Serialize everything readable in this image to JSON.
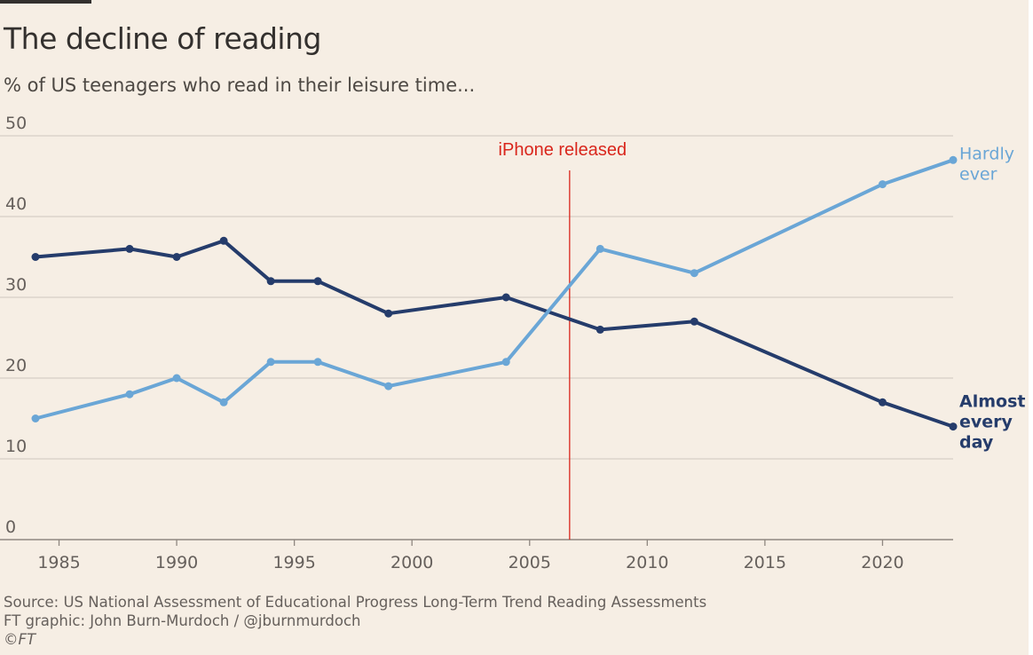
{
  "title": "The decline of reading",
  "subtitle": "% of US teenagers who read in their leisure time...",
  "source": {
    "line1": "Source: US National Assessment of Educational Progress Long-Term Trend Reading Assessments",
    "line2": "FT graphic: John Burn-Murdoch / @jburnmurdoch",
    "line3": "©FT"
  },
  "colors": {
    "background": "#f6eee4",
    "almost_every_day": "#253c6b",
    "hardly_ever": "#6aa6d6",
    "annotation": "#d9261c",
    "gridline": "#d7cec5",
    "axis_text": "#66605c"
  },
  "chart_data": {
    "type": "line",
    "title": "The decline of reading",
    "subtitle": "% of US teenagers who read in their leisure time...",
    "xlabel": "",
    "ylabel": "",
    "xlim": [
      1984,
      2023
    ],
    "ylim": [
      0,
      50
    ],
    "x_ticks": [
      1985,
      1990,
      1995,
      2000,
      2005,
      2010,
      2015,
      2020
    ],
    "y_ticks": [
      0,
      10,
      20,
      30,
      40,
      50
    ],
    "grid": true,
    "legend": "direct labels at right end of lines",
    "series": [
      {
        "name": "Almost every day",
        "label_lines": [
          "Almost",
          "every",
          "day"
        ],
        "color": "#253c6b",
        "x": [
          1984,
          1988,
          1990,
          1992,
          1994,
          1996,
          1999,
          2004,
          2008,
          2012,
          2020,
          2023
        ],
        "values": [
          35,
          36,
          35,
          37,
          32,
          32,
          28,
          30,
          26,
          27,
          17,
          14
        ]
      },
      {
        "name": "Hardly ever",
        "label_lines": [
          "Hardly",
          "ever"
        ],
        "color": "#6aa6d6",
        "x": [
          1984,
          1988,
          1990,
          1992,
          1994,
          1996,
          1999,
          2004,
          2008,
          2012,
          2020,
          2023
        ],
        "values": [
          15,
          18,
          20,
          17,
          22,
          22,
          19,
          22,
          36,
          33,
          44,
          47
        ]
      }
    ],
    "annotations": [
      {
        "text": "iPhone released",
        "x": 2006.7,
        "color": "#d9261c"
      }
    ]
  }
}
